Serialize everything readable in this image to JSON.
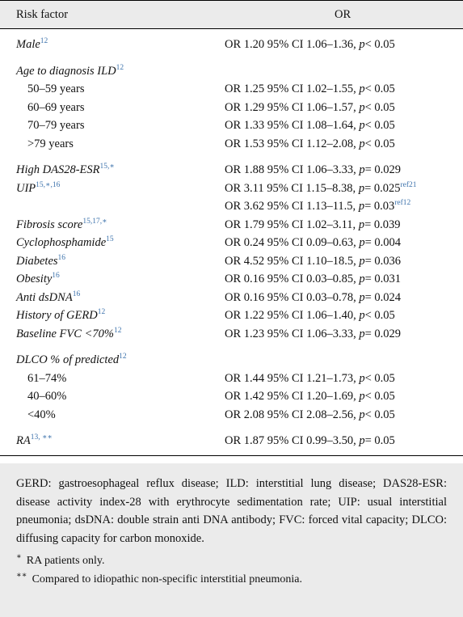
{
  "header": {
    "risk_factor": "Risk factor",
    "or": "OR"
  },
  "groups": [
    [
      {
        "factor": "Male",
        "sup": "12",
        "or": "OR 1.20 95% CI 1.06–1.36,",
        "p": "p",
        "cmp": "< 0.05"
      }
    ],
    [
      {
        "factor": "Age to diagnosis ILD",
        "sup": "12"
      },
      {
        "factor": "50–59 years",
        "sub": true,
        "or": "OR 1.25 95% CI 1.02–1.55,",
        "p": "p",
        "cmp": "< 0.05"
      },
      {
        "factor": "60–69 years",
        "sub": true,
        "or": "OR 1.29 95% CI 1.06–1.57,",
        "p": "p",
        "cmp": "< 0.05"
      },
      {
        "factor": "70–79 years",
        "sub": true,
        "or": "OR 1.33 95% CI 1.08–1.64,",
        "p": "p",
        "cmp": "< 0.05"
      },
      {
        "factor": ">79 years",
        "sub": true,
        "or": "OR 1.53 95% CI 1.12–2.08,",
        "p": "p",
        "cmp": "< 0.05"
      }
    ],
    [
      {
        "factor": "High DAS28-ESR",
        "sup": "15,∗",
        "or": "OR 1.88 95% CI 1.06–3.33,",
        "p": "p",
        "cmp": "= 0.029"
      },
      {
        "factor": "UIP",
        "sup": "15,∗,16",
        "or": "OR 3.11 95% CI 1.15–8.38,",
        "p": "p",
        "cmp": "= 0.025",
        "ref": "ref21"
      },
      {
        "or": "OR 3.62 95% CI 1.13–11.5,",
        "p": "p",
        "cmp": "= 0.03",
        "ref": "ref12"
      },
      {
        "factor": "Fibrosis score",
        "sup": "15,17,∗",
        "or": "OR 1.79 95% CI 1.02–3.11,",
        "p": "p",
        "cmp": "= 0.039"
      },
      {
        "factor": "Cyclophosphamide",
        "sup": "15",
        "or": "OR 0.24 95% CI 0.09–0.63,",
        "p": "p",
        "cmp": "= 0.004"
      },
      {
        "factor": "Diabetes",
        "sup": "16",
        "or": "OR 4.52 95% CI 1.10–18.5,",
        "p": "p",
        "cmp": "= 0.036"
      },
      {
        "factor": "Obesity",
        "sup": "16",
        "or": "OR 0.16 95% CI 0.03–0.85,",
        "p": "p",
        "cmp": "= 0.031"
      },
      {
        "factor": "Anti dsDNA",
        "sup": "16",
        "or": "OR 0.16 95% CI 0.03–0.78,",
        "p": "p",
        "cmp": "= 0.024"
      },
      {
        "factor": "History of GERD",
        "sup": "12",
        "or": "OR 1.22 95% CI 1.06–1.40,",
        "p": "p",
        "cmp": "< 0.05"
      },
      {
        "factor": "Baseline FVC <70%",
        "sup": "12",
        "or": "OR 1.23 95% CI 1.06–3.33,",
        "p": "p",
        "cmp": "= 0.029"
      }
    ],
    [
      {
        "factor": "DLCO % of predicted",
        "sup": "12"
      },
      {
        "factor": "61–74%",
        "sub": true,
        "or": "OR 1.44 95% CI 1.21–1.73,",
        "p": "p",
        "cmp": "< 0.05"
      },
      {
        "factor": "40–60%",
        "sub": true,
        "or": "OR 1.42 95% CI 1.20–1.69,",
        "p": "p",
        "cmp": "< 0.05"
      },
      {
        "factor": "<40%",
        "sub": true,
        "or": "OR 2.08 95% CI 2.08–2.56,",
        "p": "p",
        "cmp": "< 0.05"
      }
    ],
    [
      {
        "factor": "RA",
        "sup": "13, ∗∗",
        "or": "OR 1.87 95% CI 0.99–3.50,",
        "p": "p",
        "cmp": "= 0.05"
      }
    ]
  ],
  "footnote": "GERD: gastroesophageal reflux disease; ILD: interstitial lung disease; DAS28-ESR: disease activity index-28 with erythrocyte sedimentation rate; UIP: usual interstitial pneumonia; dsDNA: double strain anti DNA antibody; FVC: forced vital capacity; DLCO: diffusing capacity for carbon monoxide.",
  "notes": [
    {
      "mark": "∗",
      "text": "RA patients only."
    },
    {
      "mark": "∗∗",
      "text": "Compared to idiopathic non-specific interstitial pneumonia."
    }
  ]
}
